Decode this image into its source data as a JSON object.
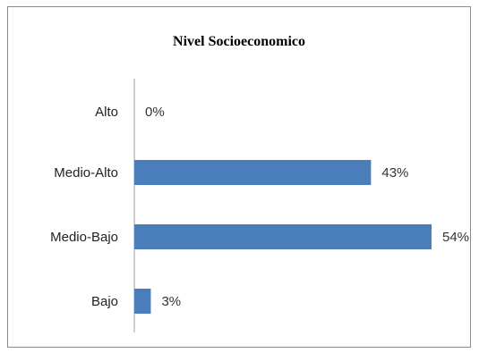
{
  "chart_data": {
    "type": "bar",
    "orientation": "horizontal",
    "title": "Nivel Socioeconomico",
    "categories": [
      "Alto",
      "Medio-Alto",
      "Medio-Bajo",
      "Bajo"
    ],
    "values": [
      0,
      43,
      54,
      3
    ],
    "value_labels": [
      "0%",
      "43%",
      "54%",
      "3%"
    ],
    "xlim": [
      0,
      54
    ],
    "bar_color": "#4a7ebb",
    "axis_color": "#bfbfbf",
    "grid": false,
    "legend": "none"
  }
}
